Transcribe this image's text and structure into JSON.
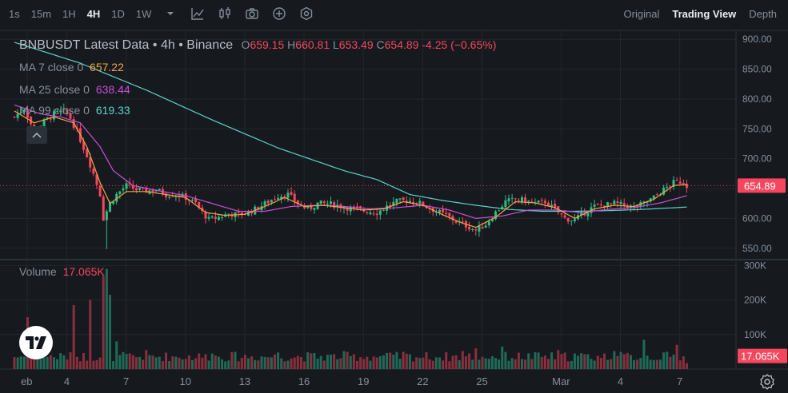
{
  "toolbar": {
    "timeframes": [
      {
        "label": "1s",
        "active": false
      },
      {
        "label": "15m",
        "active": false
      },
      {
        "label": "1H",
        "active": false
      },
      {
        "label": "4H",
        "active": true
      },
      {
        "label": "1D",
        "active": false
      },
      {
        "label": "1W",
        "active": false
      }
    ],
    "icons": [
      "chevron-down-icon",
      "indicator-icon",
      "candle-type-icon",
      "camera-icon",
      "add-icon",
      "settings-hex-icon"
    ],
    "views": [
      {
        "label": "Original",
        "active": false
      },
      {
        "label": "Trading View",
        "active": true
      },
      {
        "label": "Depth",
        "active": false
      }
    ]
  },
  "legend": {
    "symbol": "BNBUSDT Latest Data",
    "interval": "4h",
    "exchange": "Binance",
    "open_label": "O",
    "open": "659.15",
    "high_label": "H",
    "high": "660.81",
    "low_label": "L",
    "low": "653.49",
    "close_label": "C",
    "close": "654.89",
    "change": "-4.25 (−0.65%)",
    "sep": "•"
  },
  "ma": [
    {
      "label": "MA 7 close 0",
      "value": "657.22",
      "color": "#f0a445"
    },
    {
      "label": "MA 25 close 0",
      "value": "638.44",
      "color": "#c84fd8"
    },
    {
      "label": "MA 99 close 0",
      "value": "619.33",
      "color": "#5ad1c8"
    }
  ],
  "volume": {
    "label": "Volume",
    "value": "17.065K"
  },
  "colors": {
    "up": "#2ebd85",
    "down": "#f6465d",
    "vol_up": "#1f6b57",
    "vol_down": "#8a2f3d",
    "ma7": "#f0a445",
    "ma25": "#c84fd8",
    "ma99": "#5ad1c8",
    "grid": "#23272d",
    "bg": "#161a1e"
  },
  "chart_data": {
    "type": "candlestick",
    "price_axis": {
      "ticks": [
        "900.00",
        "850.00",
        "800.00",
        "750.00",
        "700.00",
        "650.00",
        "600.00",
        "550.00"
      ],
      "range": [
        535,
        915
      ]
    },
    "current_price": "654.89",
    "volume_axis": {
      "ticks": [
        "300K",
        "200K",
        "100K"
      ],
      "range": [
        0,
        310
      ]
    },
    "current_volume": "17.065K",
    "x_ticks": [
      "eb",
      "4",
      "7",
      "10",
      "13",
      "16",
      "19",
      "22",
      "25",
      "Mar",
      "4",
      "7"
    ],
    "x_tick_days": [
      2,
      4,
      7,
      10,
      13,
      16,
      19,
      22,
      25,
      29,
      32,
      35
    ],
    "x_start_day": 1.35,
    "candle_day_step": 0.1667,
    "close_path": [
      [
        0,
        770
      ],
      [
        3,
        785
      ],
      [
        6,
        745
      ],
      [
        9,
        762
      ],
      [
        12,
        775
      ],
      [
        15,
        780
      ],
      [
        17,
        768
      ],
      [
        19,
        745
      ],
      [
        22,
        705
      ],
      [
        24,
        675
      ],
      [
        26,
        640
      ],
      [
        27,
        600
      ],
      [
        29,
        625
      ],
      [
        31,
        640
      ],
      [
        34,
        655
      ],
      [
        37,
        648
      ],
      [
        40,
        646
      ],
      [
        43,
        648
      ],
      [
        46,
        640
      ],
      [
        49,
        640
      ],
      [
        52,
        635
      ],
      [
        55,
        625
      ],
      [
        57,
        610
      ],
      [
        59,
        598
      ],
      [
        62,
        602
      ],
      [
        65,
        608
      ],
      [
        68,
        606
      ],
      [
        71,
        610
      ],
      [
        74,
        618
      ],
      [
        77,
        628
      ],
      [
        80,
        638
      ],
      [
        83,
        640
      ],
      [
        86,
        625
      ],
      [
        89,
        615
      ],
      [
        92,
        625
      ],
      [
        95,
        625
      ],
      [
        98,
        622
      ],
      [
        101,
        618
      ],
      [
        104,
        615
      ],
      [
        107,
        612
      ],
      [
        110,
        610
      ],
      [
        113,
        620
      ],
      [
        116,
        628
      ],
      [
        119,
        630
      ],
      [
        122,
        628
      ],
      [
        125,
        620
      ],
      [
        128,
        612
      ],
      [
        131,
        605
      ],
      [
        134,
        595
      ],
      [
        137,
        588
      ],
      [
        140,
        580
      ],
      [
        143,
        590
      ],
      [
        146,
        610
      ],
      [
        149,
        628
      ],
      [
        152,
        632
      ],
      [
        155,
        630
      ],
      [
        158,
        625
      ],
      [
        161,
        628
      ],
      [
        164,
        615
      ],
      [
        167,
        600
      ],
      [
        170,
        597
      ],
      [
        173,
        610
      ],
      [
        176,
        620
      ],
      [
        179,
        622
      ],
      [
        182,
        625
      ],
      [
        185,
        622
      ],
      [
        188,
        618
      ],
      [
        191,
        625
      ],
      [
        194,
        635
      ],
      [
        197,
        648
      ],
      [
        200,
        660
      ],
      [
        203,
        662
      ],
      [
        204,
        655
      ]
    ],
    "ma7_path": [
      [
        0,
        780
      ],
      [
        6,
        760
      ],
      [
        12,
        770
      ],
      [
        18,
        760
      ],
      [
        22,
        720
      ],
      [
        26,
        660
      ],
      [
        29,
        625
      ],
      [
        34,
        645
      ],
      [
        40,
        645
      ],
      [
        46,
        640
      ],
      [
        52,
        635
      ],
      [
        58,
        610
      ],
      [
        64,
        605
      ],
      [
        70,
        607
      ],
      [
        76,
        620
      ],
      [
        82,
        635
      ],
      [
        88,
        620
      ],
      [
        94,
        622
      ],
      [
        100,
        618
      ],
      [
        106,
        614
      ],
      [
        112,
        616
      ],
      [
        118,
        628
      ],
      [
        124,
        622
      ],
      [
        130,
        606
      ],
      [
        136,
        592
      ],
      [
        140,
        585
      ],
      [
        146,
        602
      ],
      [
        152,
        628
      ],
      [
        158,
        626
      ],
      [
        164,
        618
      ],
      [
        170,
        600
      ],
      [
        176,
        616
      ],
      [
        182,
        622
      ],
      [
        188,
        620
      ],
      [
        194,
        632
      ],
      [
        200,
        655
      ],
      [
        204,
        657
      ]
    ],
    "ma25_path": [
      [
        0,
        790
      ],
      [
        8,
        775
      ],
      [
        14,
        770
      ],
      [
        20,
        760
      ],
      [
        26,
        720
      ],
      [
        30,
        680
      ],
      [
        36,
        655
      ],
      [
        44,
        646
      ],
      [
        52,
        638
      ],
      [
        60,
        625
      ],
      [
        68,
        612
      ],
      [
        76,
        612
      ],
      [
        84,
        620
      ],
      [
        92,
        622
      ],
      [
        100,
        620
      ],
      [
        108,
        616
      ],
      [
        116,
        618
      ],
      [
        124,
        622
      ],
      [
        132,
        614
      ],
      [
        140,
        600
      ],
      [
        148,
        604
      ],
      [
        156,
        614
      ],
      [
        164,
        614
      ],
      [
        172,
        610
      ],
      [
        180,
        615
      ],
      [
        188,
        618
      ],
      [
        196,
        626
      ],
      [
        204,
        638
      ]
    ],
    "ma99_path": [
      [
        0,
        895
      ],
      [
        20,
        860
      ],
      [
        40,
        815
      ],
      [
        60,
        765
      ],
      [
        80,
        718
      ],
      [
        100,
        680
      ],
      [
        110,
        665
      ],
      [
        120,
        640
      ],
      [
        130,
        630
      ],
      [
        140,
        622
      ],
      [
        150,
        615
      ],
      [
        160,
        612
      ],
      [
        170,
        612
      ],
      [
        180,
        613
      ],
      [
        190,
        615
      ],
      [
        204,
        619
      ]
    ],
    "volume_spikes": [
      [
        4,
        150
      ],
      [
        18,
        185
      ],
      [
        23,
        200
      ],
      [
        27,
        270
      ],
      [
        28,
        290
      ],
      [
        29,
        215
      ],
      [
        31,
        80
      ],
      [
        40,
        55
      ],
      [
        60,
        45
      ],
      [
        80,
        48
      ],
      [
        100,
        52
      ],
      [
        118,
        50
      ],
      [
        136,
        52
      ],
      [
        140,
        60
      ],
      [
        148,
        65
      ],
      [
        165,
        55
      ],
      [
        170,
        45
      ],
      [
        182,
        52
      ],
      [
        191,
        85
      ],
      [
        198,
        50
      ],
      [
        201,
        70
      ],
      [
        204,
        17
      ]
    ]
  }
}
